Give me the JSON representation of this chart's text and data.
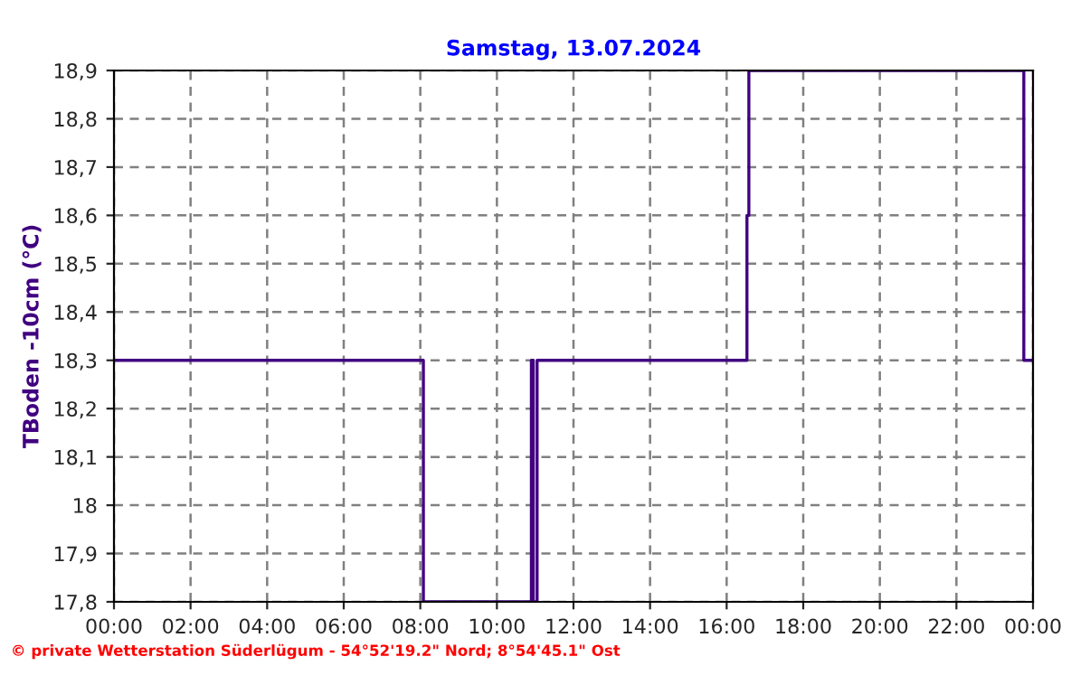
{
  "chart_data": {
    "type": "step",
    "title": "Samstag, 13.07.2024",
    "ylabel": "TBoden -10cm (°C)",
    "x": [
      0,
      8.08,
      10.9,
      10.95,
      11.05,
      16.53,
      16.58,
      23.76,
      24
    ],
    "series": [
      {
        "color": "#400080",
        "values": [
          18.3,
          17.8,
          18.3,
          17.8,
          18.3,
          18.6,
          18.9,
          18.3,
          18.3
        ]
      }
    ],
    "xlim": [
      0,
      24
    ],
    "xticks": [
      {
        "value": 0,
        "label": "00:00"
      },
      {
        "value": 2,
        "label": "02:00"
      },
      {
        "value": 4,
        "label": "04:00"
      },
      {
        "value": 6,
        "label": "06:00"
      },
      {
        "value": 8,
        "label": "08:00"
      },
      {
        "value": 10,
        "label": "10:00"
      },
      {
        "value": 12,
        "label": "12:00"
      },
      {
        "value": 14,
        "label": "14:00"
      },
      {
        "value": 16,
        "label": "16:00"
      },
      {
        "value": 18,
        "label": "18:00"
      },
      {
        "value": 20,
        "label": "20:00"
      },
      {
        "value": 22,
        "label": "22:00"
      },
      {
        "value": 24,
        "label": "00:00"
      }
    ],
    "ylim": [
      17.8,
      18.9
    ],
    "yticks": [
      {
        "value": 17.8,
        "label": "17,8"
      },
      {
        "value": 17.9,
        "label": "17,9"
      },
      {
        "value": 18,
        "label": "18"
      },
      {
        "value": 18.1,
        "label": "18,1"
      },
      {
        "value": 18.2,
        "label": "18,2"
      },
      {
        "value": 18.3,
        "label": "18,3"
      },
      {
        "value": 18.4,
        "label": "18,4"
      },
      {
        "value": 18.5,
        "label": "18,5"
      },
      {
        "value": 18.6,
        "label": "18,6"
      },
      {
        "value": 18.7,
        "label": "18,7"
      },
      {
        "value": 18.8,
        "label": "18,8"
      },
      {
        "value": 18.9,
        "label": "18,9"
      }
    ],
    "grid": true,
    "line_style": "solid",
    "annotations": [
      "© private Wetterstation Süderlügum - 54°52'19.2\" Nord; 8°54'45.1\" Ost"
    ]
  }
}
